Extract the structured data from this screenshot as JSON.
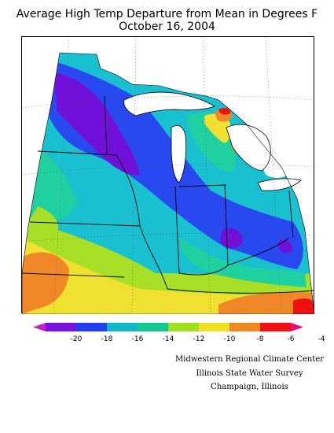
{
  "title": {
    "line1": "Average High Temp Departure from Mean in Degrees F",
    "line2": "October 16, 2004"
  },
  "legend": {
    "ticks": [
      "-20",
      "-18",
      "-16",
      "-14",
      "-12",
      "-10",
      "-8",
      "-6",
      "-4"
    ],
    "colors": [
      "#c020d0",
      "#7a10e0",
      "#2040f0",
      "#10b8c8",
      "#10c890",
      "#a0e020",
      "#f0e020",
      "#f08820",
      "#f01010",
      "#e01080"
    ]
  },
  "colors": {
    "purple": "#7010d8",
    "blue": "#2848f0",
    "cyan": "#18c0d0",
    "teal": "#20d0a0",
    "yellow_green": "#a8e028",
    "yellow": "#f0e030",
    "orange": "#f08828",
    "red": "#f01010",
    "magenta": "#c020b0",
    "boundary": "#000000"
  },
  "credits": {
    "line1": "Midwestern Regional Climate Center",
    "line2": "Illinois State Water Survey",
    "line3": "Champaign, Illinois"
  }
}
